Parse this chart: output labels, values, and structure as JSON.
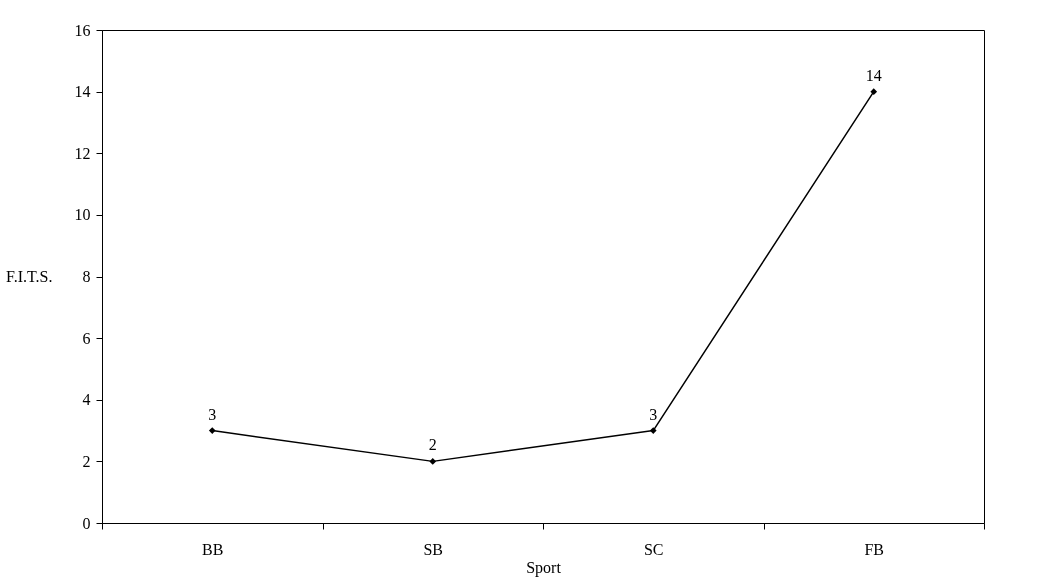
{
  "chart_data": {
    "type": "line",
    "xlabel": "Sport",
    "ylabel": "F.I.T.S.",
    "categories": [
      "BB",
      "SB",
      "SC",
      "FB"
    ],
    "series": [
      {
        "color": "#000000",
        "values": [
          3,
          2,
          3,
          14
        ]
      }
    ],
    "ylim": [
      0,
      16
    ],
    "yticks": [
      0,
      2,
      4,
      6,
      8,
      10,
      12,
      14,
      16
    ],
    "marker": "diamond",
    "line_style": "solid",
    "data_labels": true,
    "grid": false
  }
}
